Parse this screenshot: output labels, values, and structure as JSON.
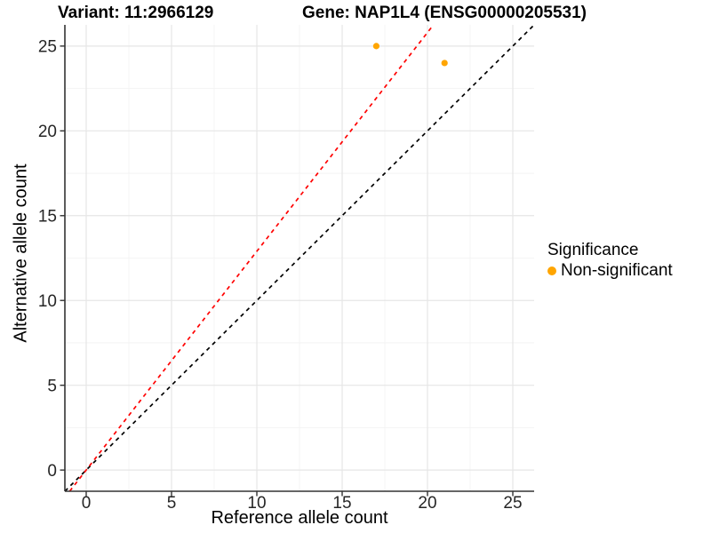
{
  "chart_data": {
    "type": "scatter",
    "titles": {
      "variant": "Variant: 11:2966129",
      "gene": "Gene: NAP1L4 (ENSG00000205531)"
    },
    "xlabel": "Reference allele count",
    "ylabel": "Alternative allele count",
    "xlim": [
      -1.25,
      26.25
    ],
    "ylim": [
      -1.25,
      26.25
    ],
    "x_ticks": [
      0,
      5,
      10,
      15,
      20,
      25
    ],
    "y_ticks": [
      0,
      5,
      10,
      15,
      20,
      25
    ],
    "minor_ticks": [
      2.5,
      7.5,
      12.5,
      17.5,
      22.5
    ],
    "grid": true,
    "series": [
      {
        "name": "Non-significant",
        "color": "#FFA500",
        "points": [
          {
            "x": 17,
            "y": 25
          },
          {
            "x": 21,
            "y": 24
          }
        ]
      }
    ],
    "reference_lines": [
      {
        "name": "identity",
        "slope": 1.0,
        "intercept": 0,
        "color": "#000000",
        "style": "dashed"
      },
      {
        "name": "expected-ratio",
        "slope": 1.29,
        "intercept": 0,
        "color": "#FF0000",
        "style": "dashed"
      }
    ],
    "legend": {
      "title": "Significance",
      "position": "right",
      "items": [
        {
          "label": "Non-significant",
          "color": "#FFA500"
        }
      ]
    },
    "style": {
      "major_grid_color": "#E6E6E6",
      "minor_grid_color": "#F2F2F2",
      "axis_line_color": "#333333",
      "tick_label_color": "#262626"
    }
  }
}
